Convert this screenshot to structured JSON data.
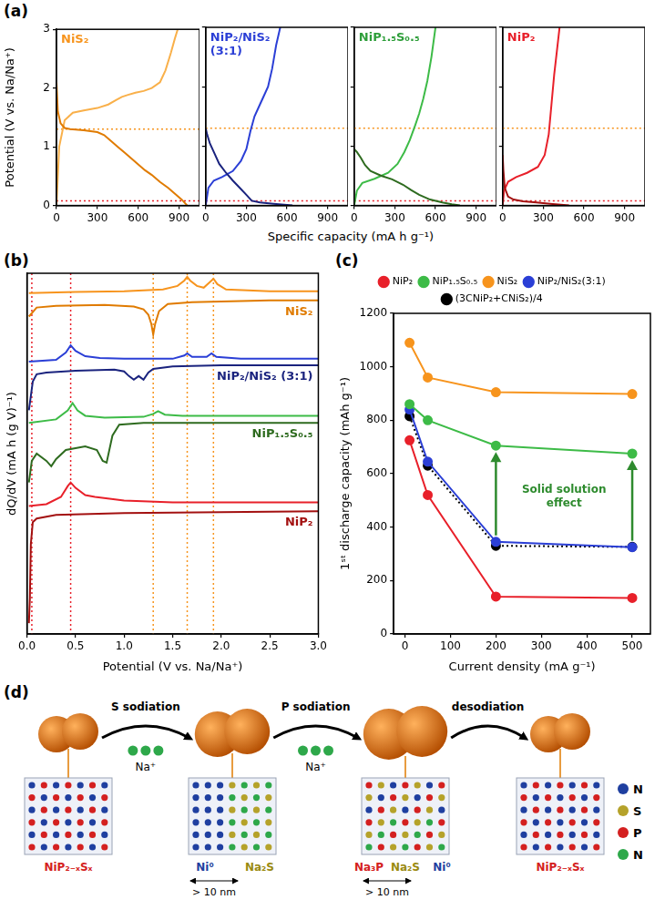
{
  "chart_data": [
    {
      "panel_label": "(a)",
      "type": "line",
      "x_label": "Specific capacity (mA h g⁻¹)",
      "y_label": "Potential (V vs. Na/Na⁺)",
      "xlim": [
        0,
        1050
      ],
      "xticks": [
        0,
        300,
        600,
        900
      ],
      "ylim": [
        0,
        3
      ],
      "yticks": [
        0,
        1,
        2,
        3
      ],
      "reference_lines": [
        {
          "y": 1.3,
          "color": "#f7941d",
          "line_style": "dotted"
        },
        {
          "y": 0.08,
          "color": "#e8202a",
          "line_style": "dotted"
        }
      ],
      "subplots": [
        {
          "title": "NiS₂",
          "color": "#f7941d",
          "series": [
            {
              "color": "#e07b00",
              "line_style": "solid",
              "x": [
                0,
                10,
                30,
                60,
                100,
                200,
                300,
                350,
                400,
                450,
                500,
                550,
                600,
                650,
                700,
                760,
                820,
                870,
                920,
                960
              ],
              "values": [
                2.1,
                1.6,
                1.4,
                1.32,
                1.3,
                1.28,
                1.25,
                1.2,
                1.1,
                1.0,
                0.9,
                0.8,
                0.7,
                0.6,
                0.52,
                0.4,
                0.3,
                0.2,
                0.1,
                0.0
              ]
            },
            {
              "color": "#f9b04a",
              "line_style": "solid",
              "x": [
                0,
                20,
                60,
                120,
                200,
                300,
                380,
                440,
                480,
                520,
                580,
                640,
                700,
                760,
                800,
                840,
                870,
                890
              ],
              "values": [
                0.0,
                1.0,
                1.45,
                1.58,
                1.62,
                1.66,
                1.72,
                1.8,
                1.85,
                1.88,
                1.92,
                1.95,
                2.0,
                2.1,
                2.3,
                2.6,
                2.85,
                3.0
              ]
            }
          ]
        },
        {
          "title": "NiP₂/NiS₂ (3:1)",
          "color": "#2b3fd6",
          "series": [
            {
              "color": "#1a237e",
              "line_style": "solid",
              "x": [
                0,
                10,
                30,
                60,
                100,
                150,
                200,
                250,
                300,
                340,
                400,
                500,
                600,
                640
              ],
              "values": [
                1.3,
                1.2,
                1.05,
                0.9,
                0.7,
                0.55,
                0.42,
                0.3,
                0.18,
                0.08,
                0.05,
                0.03,
                0.01,
                0.0
              ]
            },
            {
              "color": "#2b3fd6",
              "line_style": "solid",
              "x": [
                0,
                20,
                60,
                120,
                200,
                260,
                300,
                330,
                360,
                400,
                430,
                460,
                490,
                520,
                550
              ],
              "values": [
                0.0,
                0.3,
                0.42,
                0.48,
                0.58,
                0.75,
                0.95,
                1.25,
                1.5,
                1.7,
                1.85,
                2.0,
                2.3,
                2.7,
                3.0
              ]
            }
          ]
        },
        {
          "title": "NiP₁.₅S₀.₅",
          "color": "#2e9e3a",
          "series": [
            {
              "color": "#2e6b1f",
              "line_style": "solid",
              "x": [
                0,
                20,
                50,
                80,
                120,
                200,
                280,
                360,
                420,
                480,
                560,
                650,
                720,
                780
              ],
              "values": [
                0.95,
                0.9,
                0.8,
                0.68,
                0.58,
                0.5,
                0.44,
                0.35,
                0.26,
                0.18,
                0.1,
                0.05,
                0.02,
                0.0
              ]
            },
            {
              "color": "#3dbb47",
              "line_style": "solid",
              "x": [
                0,
                20,
                60,
                150,
                250,
                320,
                370,
                410,
                450,
                480,
                510,
                540,
                570,
                600
              ],
              "values": [
                0.0,
                0.25,
                0.38,
                0.45,
                0.55,
                0.7,
                0.9,
                1.1,
                1.35,
                1.55,
                1.8,
                2.1,
                2.5,
                3.0
              ]
            }
          ]
        },
        {
          "title": "NiP₂",
          "color": "#e8202a",
          "series": [
            {
              "color": "#a31010",
              "line_style": "solid",
              "x": [
                0,
                5,
                15,
                40,
                80,
                150,
                250,
                350,
                450,
                490
              ],
              "values": [
                0.85,
                0.6,
                0.3,
                0.15,
                0.1,
                0.07,
                0.05,
                0.03,
                0.01,
                0.0
              ]
            },
            {
              "color": "#e8202a",
              "line_style": "solid",
              "x": [
                0,
                10,
                40,
                100,
                180,
                260,
                310,
                340,
                360,
                380,
                400,
                420
              ],
              "values": [
                0.0,
                0.25,
                0.4,
                0.48,
                0.55,
                0.65,
                0.85,
                1.2,
                1.7,
                2.2,
                2.6,
                3.0
              ]
            }
          ]
        }
      ]
    },
    {
      "panel_label": "(b)",
      "type": "line",
      "x_label": "Potential (V vs. Na/Na⁺)",
      "y_label": "dQ/dV (mA h (g V)⁻¹)",
      "xlim": [
        0,
        3
      ],
      "xticks": [
        {
          "value": 0,
          "label": "0.0"
        },
        {
          "value": 0.5,
          "label": "0.5"
        },
        {
          "value": 1,
          "label": "1.0"
        },
        {
          "value": 1.5,
          "label": "1.5"
        },
        {
          "value": 2,
          "label": "2.0"
        },
        {
          "value": 2.5,
          "label": "2.5"
        },
        {
          "value": 3,
          "label": "3.0"
        }
      ],
      "ylim": [
        0,
        100
      ],
      "tick_labels": "x",
      "reference_lines": [
        {
          "x": 0.05,
          "color": "#e8202a",
          "line_style": "dotted"
        },
        {
          "x": 0.45,
          "color": "#e8202a",
          "line_style": "dotted"
        },
        {
          "x": 1.3,
          "color": "#f7941d",
          "line_style": "dotted"
        },
        {
          "x": 1.65,
          "color": "#f7941d",
          "line_style": "dotted"
        },
        {
          "x": 1.92,
          "color": "#f7941d",
          "line_style": "dotted"
        }
      ],
      "series": [
        {
          "color": "#f7941d",
          "x": [
            0.02,
            0.5,
            1.0,
            1.4,
            1.55,
            1.62,
            1.65,
            1.68,
            1.75,
            1.82,
            1.88,
            1.92,
            1.96,
            2.05,
            2.5,
            3.0
          ],
          "values": [
            94.5,
            94.8,
            95,
            95.5,
            96.5,
            98,
            99,
            98,
            96.5,
            96,
            97.5,
            98.5,
            97,
            95.5,
            95,
            95
          ]
        },
        {
          "name": "NiS₂",
          "color": "#e07b00",
          "x": [
            0.02,
            0.1,
            0.3,
            0.8,
            1.1,
            1.2,
            1.25,
            1.28,
            1.3,
            1.32,
            1.36,
            1.45,
            1.7,
            2.5,
            3.0
          ],
          "values": [
            88,
            90.5,
            91,
            91.2,
            90.8,
            90,
            88.5,
            86,
            83,
            86,
            89.5,
            91.5,
            92,
            92.5,
            92.5
          ]
        },
        {
          "color": "#2b3fd6",
          "x": [
            0.02,
            0.3,
            0.4,
            0.45,
            0.5,
            0.6,
            0.75,
            1.0,
            1.5,
            1.62,
            1.65,
            1.7,
            1.85,
            1.9,
            1.95,
            2.2,
            3.0
          ],
          "values": [
            75.5,
            76,
            78,
            80,
            78.5,
            77,
            76.5,
            76.3,
            76.3,
            77.2,
            77.8,
            76.8,
            76.8,
            77.8,
            76.8,
            76.3,
            76.3
          ]
        },
        {
          "name": "NiP₂/NiS₂ (3:1)",
          "color": "#1a237e",
          "x": [
            0.02,
            0.06,
            0.1,
            0.2,
            0.5,
            0.9,
            1.0,
            1.05,
            1.1,
            1.15,
            1.2,
            1.25,
            1.3,
            1.5,
            2.0,
            3.0
          ],
          "values": [
            62,
            70,
            72,
            72.5,
            73,
            73.3,
            72.8,
            71.5,
            70.5,
            71.5,
            70.5,
            72.5,
            73.5,
            74.2,
            74.5,
            74.5
          ]
        },
        {
          "color": "#3dbb47",
          "x": [
            0.02,
            0.3,
            0.42,
            0.47,
            0.52,
            0.6,
            0.8,
            1.2,
            1.3,
            1.35,
            1.42,
            1.6,
            3.0
          ],
          "values": [
            58.5,
            59.5,
            62,
            64,
            62,
            60.5,
            60,
            60.2,
            61,
            61.8,
            60.8,
            60.5,
            60.5
          ]
        },
        {
          "name": "NiP₁.₅S₀.₅",
          "color": "#2e6b1f",
          "x": [
            0.02,
            0.05,
            0.1,
            0.2,
            0.25,
            0.3,
            0.4,
            0.6,
            0.72,
            0.78,
            0.82,
            0.88,
            0.95,
            1.2,
            3.0
          ],
          "values": [
            42,
            48,
            50,
            48,
            46.5,
            48.5,
            51,
            52,
            51,
            48,
            47.5,
            55,
            58,
            58.5,
            58.5
          ]
        },
        {
          "color": "#e8202a",
          "x": [
            0.02,
            0.2,
            0.35,
            0.42,
            0.45,
            0.5,
            0.6,
            0.7,
            1.0,
            1.5,
            3.0
          ],
          "values": [
            35.5,
            36,
            38,
            41,
            42,
            40.5,
            38.5,
            38,
            37,
            36.5,
            36.5
          ]
        },
        {
          "name": "NiP₂",
          "color": "#a31010",
          "x": [
            0.02,
            0.03,
            0.04,
            0.06,
            0.1,
            0.3,
            1.0,
            3.0
          ],
          "values": [
            3,
            10,
            25,
            31,
            32,
            33,
            33.5,
            34
          ]
        }
      ]
    },
    {
      "panel_label": "(c)",
      "type": "line",
      "x_label": "Current density (mA g⁻¹)",
      "y_label": "1ˢᵗ discharge capacity (mAh g⁻¹)",
      "x": [
        10,
        50,
        200,
        500
      ],
      "xlim": [
        -25,
        540
      ],
      "xticks": [
        0,
        100,
        200,
        300,
        400,
        500
      ],
      "ylim": [
        0,
        1200
      ],
      "yticks": [
        0,
        200,
        400,
        600,
        800,
        1000,
        1200
      ],
      "legend": "top",
      "series": [
        {
          "name": "NiP₂",
          "color": "#e8202a",
          "marker": "circle",
          "line_style": "solid",
          "values": [
            725,
            520,
            140,
            135
          ]
        },
        {
          "name": "NiP₁.₅S₀.₅",
          "color": "#3dbb47",
          "marker": "circle",
          "line_style": "solid",
          "values": [
            860,
            800,
            705,
            675
          ]
        },
        {
          "name": "NiS₂",
          "color": "#f7941d",
          "marker": "circle",
          "line_style": "solid",
          "values": [
            1090,
            960,
            905,
            898
          ]
        },
        {
          "name": "NiP₂/NiS₂(3:1)",
          "color": "#2b3fd6",
          "marker": "circle",
          "line_style": "solid",
          "values": [
            840,
            645,
            345,
            325
          ]
        },
        {
          "name": "(3CNiP₂+CNiS₂)/4",
          "color": "#000000",
          "marker": "circle",
          "line_style": "dotted",
          "values": [
            815,
            630,
            330,
            326
          ]
        }
      ],
      "annotation": {
        "text": "Solid solution effect",
        "color": "#2e8b2e",
        "arrows": [
          {
            "x": 200,
            "from": 345,
            "to": 705
          },
          {
            "x": 500,
            "from": 325,
            "to": 675
          }
        ]
      }
    }
  ],
  "diagram": {
    "panel_label": "(d)",
    "steps": [
      {
        "label": "S sodiation",
        "ion": "Na⁺"
      },
      {
        "label": "P sodiation",
        "ion": "Na⁺"
      },
      {
        "label": "desodiation"
      }
    ],
    "stages": [
      {
        "phase_labels": [
          {
            "text": "NiP₂₋ₓSₓ",
            "color": "#d42020"
          }
        ]
      },
      {
        "phase_labels": [
          {
            "text": "Ni⁰",
            "color": "#1f3fa0"
          },
          {
            "text": "Na₂S",
            "color": "#9a8a10"
          }
        ],
        "scale_bar": "> 10 nm"
      },
      {
        "phase_labels": [
          {
            "text": "Na₃P",
            "color": "#d42020"
          },
          {
            "text": "Na₂S",
            "color": "#9a8a10"
          },
          {
            "text": "Ni⁰",
            "color": "#1f3fa0"
          }
        ],
        "scale_bar": "> 10 nm"
      },
      {
        "phase_labels": [
          {
            "text": "NiP₂₋ₓSₓ",
            "color": "#d42020"
          }
        ]
      }
    ],
    "atom_key": [
      {
        "label": "N",
        "color": "#1f3fa0"
      },
      {
        "label": "S",
        "color": "#b5a22a"
      },
      {
        "label": "P",
        "color": "#d42020"
      },
      {
        "label": "N",
        "color": "#2ea84a"
      }
    ]
  }
}
